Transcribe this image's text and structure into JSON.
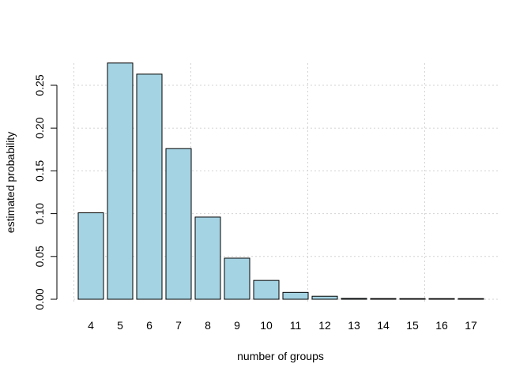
{
  "chart_data": {
    "type": "bar",
    "title": "",
    "xlabel": "number of groups",
    "ylabel": "estimated probability",
    "categories": [
      "4",
      "5",
      "6",
      "7",
      "8",
      "9",
      "10",
      "11",
      "12",
      "13",
      "14",
      "15",
      "16",
      "17"
    ],
    "values": [
      0.101,
      0.276,
      0.263,
      0.176,
      0.096,
      0.048,
      0.022,
      0.008,
      0.0035,
      0.001,
      0.0008,
      0.0004,
      0.0003,
      0.0002
    ],
    "y_ticks": [
      0.0,
      0.05,
      0.1,
      0.15,
      0.2,
      0.25
    ],
    "y_tick_labels": [
      "0.00",
      "0.05",
      "0.10",
      "0.15",
      "0.20",
      "0.25"
    ],
    "ylim": [
      0,
      0.28
    ],
    "grid": true,
    "bar_color": "#a4d3e3",
    "bar_edge_color": "#000000",
    "grid_color": "#d3d3d3"
  }
}
